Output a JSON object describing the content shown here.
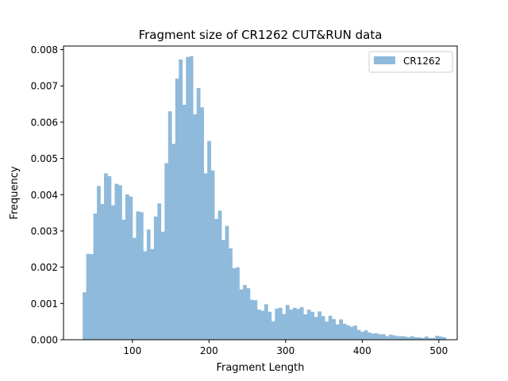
{
  "chart_data": {
    "type": "bar",
    "title": "Fragment size of CR1262 CUT&RUN data",
    "xlabel": "Fragment Length",
    "ylabel": "Frequency",
    "xlim": [
      10,
      524
    ],
    "ylim": [
      0,
      0.0081
    ],
    "xticks": [
      100,
      200,
      300,
      400,
      500
    ],
    "xtick_labels": [
      "100",
      "200",
      "300",
      "400",
      "500"
    ],
    "yticks": [
      0,
      0.001,
      0.002,
      0.003,
      0.004,
      0.005,
      0.006,
      0.007,
      0.008
    ],
    "ytick_labels": [
      "0.000",
      "0.001",
      "0.002",
      "0.003",
      "0.004",
      "0.005",
      "0.006",
      "0.007",
      "0.008"
    ],
    "grid": false,
    "legend_position": "top-right",
    "bin_start": 35,
    "bin_width": 4.65,
    "series": [
      {
        "name": "CR1262",
        "color": "#8fbadb",
        "values": [
          0.00131,
          0.00237,
          0.00236,
          0.00348,
          0.00424,
          0.00374,
          0.00459,
          0.00451,
          0.00371,
          0.0043,
          0.00426,
          0.00331,
          0.00401,
          0.00395,
          0.00281,
          0.00354,
          0.00352,
          0.00244,
          0.00304,
          0.0025,
          0.0034,
          0.00376,
          0.00298,
          0.00487,
          0.0063,
          0.0054,
          0.0072,
          0.00773,
          0.00648,
          0.0078,
          0.00782,
          0.00622,
          0.00694,
          0.00641,
          0.00459,
          0.00548,
          0.00467,
          0.00333,
          0.00356,
          0.00275,
          0.00314,
          0.00252,
          0.00197,
          0.002,
          0.00139,
          0.00151,
          0.00142,
          0.0011,
          0.00109,
          0.00083,
          0.0008,
          0.00098,
          0.00077,
          0.00051,
          0.00086,
          0.00088,
          0.00071,
          0.00096,
          0.00083,
          0.00088,
          0.00085,
          0.0009,
          0.0007,
          0.00083,
          0.00077,
          0.00063,
          0.00078,
          0.00065,
          0.0005,
          0.00066,
          0.00057,
          0.00042,
          0.00056,
          0.00044,
          0.0004,
          0.00036,
          0.00039,
          0.00027,
          0.00022,
          0.00026,
          0.0002,
          0.00017,
          0.00018,
          0.00015,
          0.00015,
          0.0001,
          0.00014,
          0.00012,
          0.0001,
          0.0001,
          9e-05,
          7e-05,
          0.0001,
          7e-05,
          7e-05,
          5e-05,
          9e-05,
          5e-05,
          5e-05,
          0.00011,
          9e-05,
          7e-05
        ]
      }
    ]
  }
}
